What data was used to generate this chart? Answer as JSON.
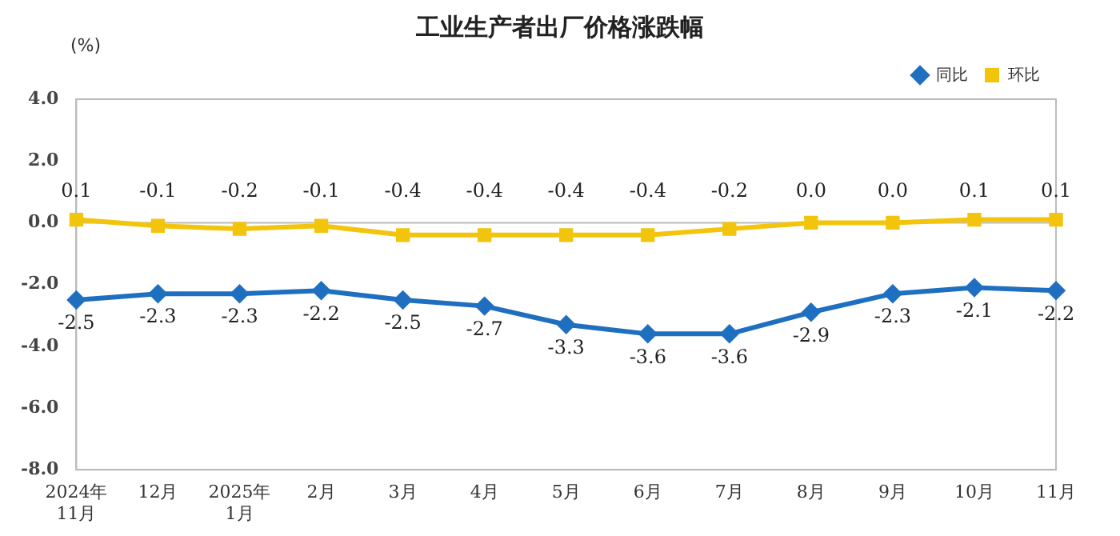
{
  "chart_data": {
    "type": "line",
    "title": "工业生产者出厂价格涨跌幅",
    "ylabel": "(%)",
    "categories": [
      "2024年\n11月",
      "12月",
      "2025年\n1月",
      "2月",
      "3月",
      "4月",
      "5月",
      "6月",
      "7月",
      "8月",
      "9月",
      "10月",
      "11月"
    ],
    "series": [
      {
        "name": "同比",
        "color": "#1f6fc1",
        "marker": "diamond",
        "values": [
          -2.5,
          -2.3,
          -2.3,
          -2.2,
          -2.5,
          -2.7,
          -3.3,
          -3.6,
          -3.6,
          -2.9,
          -2.3,
          -2.1,
          -2.2
        ],
        "value_labels": [
          "-2.5",
          "-2.3",
          "-2.3",
          "-2.2",
          "-2.5",
          "-2.7",
          "-3.3",
          "-3.6",
          "-3.6",
          "-2.9",
          "-2.3",
          "-2.1",
          "-2.2"
        ]
      },
      {
        "name": "环比",
        "color": "#f2c40c",
        "marker": "square",
        "values": [
          0.1,
          -0.1,
          -0.2,
          -0.1,
          -0.4,
          -0.4,
          -0.4,
          -0.4,
          -0.2,
          0.0,
          0.0,
          0.1,
          0.1
        ],
        "value_labels": [
          "0.1",
          "-0.1",
          "-0.2",
          "-0.1",
          "-0.4",
          "-0.4",
          "-0.4",
          "-0.4",
          "-0.2",
          "0.0",
          "0.0",
          "0.1",
          "0.1"
        ]
      }
    ],
    "ylim": [
      -8,
      4
    ],
    "yticks": [
      {
        "value": 4,
        "label": "4.0"
      },
      {
        "value": 2,
        "label": "2.0"
      },
      {
        "value": 0,
        "label": "0.0"
      },
      {
        "value": -2,
        "label": "-2.0"
      },
      {
        "value": -4,
        "label": "-4.0"
      },
      {
        "value": -6,
        "label": "-6.0"
      },
      {
        "value": -8,
        "label": "-8.0"
      }
    ],
    "ref_lines": [
      {
        "axis": "y",
        "value": 0,
        "color": "#bbbbbb"
      }
    ],
    "grid": false,
    "legend": "top right",
    "line_style": "solid"
  }
}
